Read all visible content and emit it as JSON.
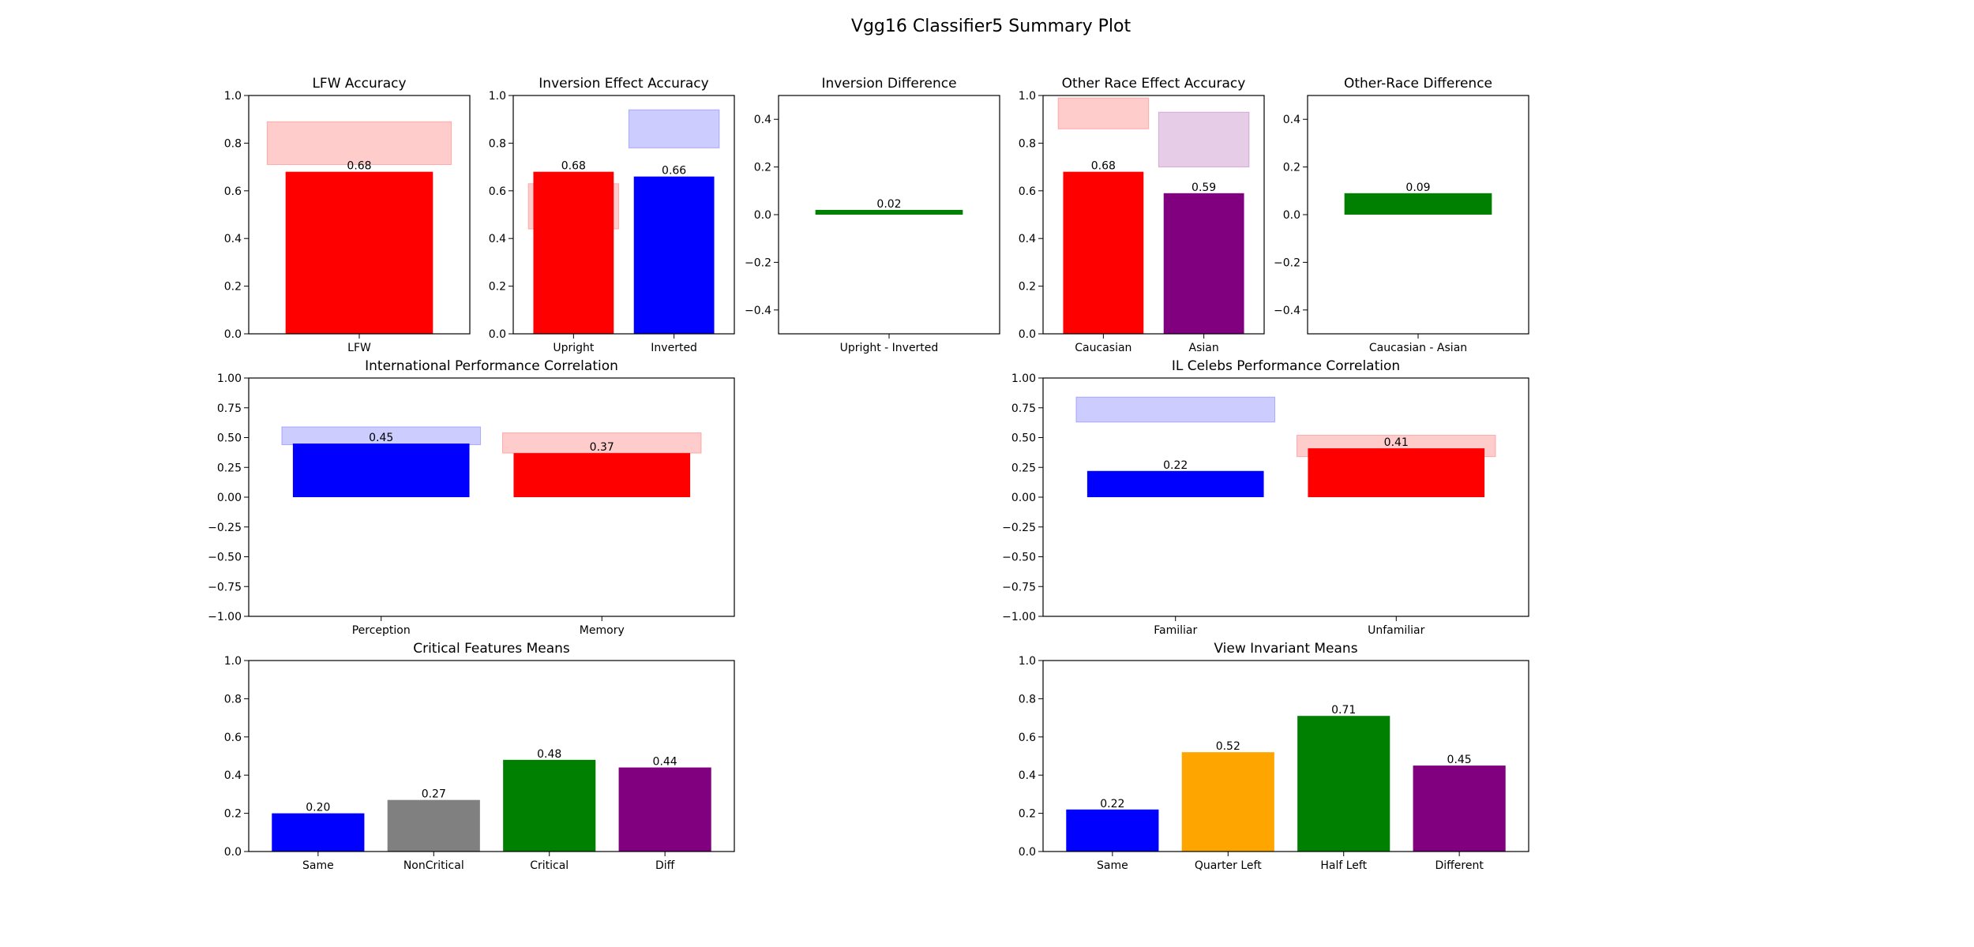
{
  "title": "Vgg16 Classifier5 Summary Plot",
  "chart_data": [
    {
      "id": "lfw",
      "type": "bar",
      "title": "LFW Accuracy",
      "categories": [
        "LFW"
      ],
      "values": [
        0.68
      ],
      "value_labels": [
        "0.68"
      ],
      "colors": [
        "#ff0000"
      ],
      "ylim": [
        0,
        1
      ],
      "yticks": [
        "0.0",
        "0.2",
        "0.4",
        "0.6",
        "0.8",
        "1.0"
      ],
      "bands": [
        {
          "x0": -0.5,
          "x1": 0.5,
          "y0": 0.71,
          "y1": 0.89,
          "color": "#ff0000"
        }
      ]
    },
    {
      "id": "inversion",
      "type": "bar",
      "title": "Inversion Effect Accuracy",
      "categories": [
        "Upright",
        "Inverted"
      ],
      "values": [
        0.68,
        0.66
      ],
      "value_labels": [
        "0.68",
        "0.66"
      ],
      "colors": [
        "#ff0000",
        "#0000ff"
      ],
      "ylim": [
        0,
        1
      ],
      "yticks": [
        "0.0",
        "0.2",
        "0.4",
        "0.6",
        "0.8",
        "1.0"
      ],
      "bands": [
        {
          "x0": -0.45,
          "x1": 0.45,
          "y0": 0.44,
          "y1": 0.63,
          "color": "#ff0000"
        },
        {
          "x0": 0.55,
          "x1": 1.45,
          "y0": 0.78,
          "y1": 0.94,
          "color": "#0000ff"
        }
      ]
    },
    {
      "id": "inversion-diff",
      "type": "bar",
      "title": "Inversion Difference",
      "categories": [
        "Upright - Inverted"
      ],
      "values": [
        0.02
      ],
      "value_labels": [
        "0.02"
      ],
      "colors": [
        "#008000"
      ],
      "ylim": [
        -0.5,
        0.5
      ],
      "yticks": [
        "−0.4",
        "−0.2",
        "0.0",
        "0.2",
        "0.4"
      ],
      "bands": []
    },
    {
      "id": "other-race",
      "type": "bar",
      "title": "Other Race Effect Accuracy",
      "categories": [
        "Caucasian",
        "Asian"
      ],
      "values": [
        0.68,
        0.59
      ],
      "value_labels": [
        "0.68",
        "0.59"
      ],
      "colors": [
        "#ff0000",
        "#800080"
      ],
      "ylim": [
        0,
        1
      ],
      "yticks": [
        "0.0",
        "0.2",
        "0.4",
        "0.6",
        "0.8",
        "1.0"
      ],
      "bands": [
        {
          "x0": -0.45,
          "x1": 0.45,
          "y0": 0.86,
          "y1": 0.99,
          "color": "#ff0000"
        },
        {
          "x0": 0.55,
          "x1": 1.45,
          "y0": 0.7,
          "y1": 0.93,
          "color": "#800080"
        }
      ]
    },
    {
      "id": "other-race-diff",
      "type": "bar",
      "title": "Other-Race Difference",
      "categories": [
        "Caucasian - Asian"
      ],
      "values": [
        0.09
      ],
      "value_labels": [
        "0.09"
      ],
      "colors": [
        "#008000"
      ],
      "ylim": [
        -0.5,
        0.5
      ],
      "yticks": [
        "−0.4",
        "−0.2",
        "0.0",
        "0.2",
        "0.4"
      ],
      "bands": []
    },
    {
      "id": "intl-corr",
      "type": "bar",
      "title": "International Performance Correlation",
      "categories": [
        "Perception",
        "Memory"
      ],
      "values": [
        0.45,
        0.37
      ],
      "value_labels": [
        "0.45",
        "0.37"
      ],
      "colors": [
        "#0000ff",
        "#ff0000"
      ],
      "ylim": [
        -1,
        1
      ],
      "yticks": [
        "−1.00",
        "−0.75",
        "−0.50",
        "−0.25",
        "0.00",
        "0.25",
        "0.50",
        "0.75",
        "1.00"
      ],
      "bands": [
        {
          "x0": -0.45,
          "x1": 0.45,
          "y0": 0.44,
          "y1": 0.59,
          "color": "#0000ff"
        },
        {
          "x0": 0.55,
          "x1": 1.45,
          "y0": 0.37,
          "y1": 0.54,
          "color": "#ff0000"
        }
      ]
    },
    {
      "id": "il-celebs",
      "type": "bar",
      "title": "IL Celebs Performance Correlation",
      "categories": [
        "Familiar",
        "Unfamiliar"
      ],
      "values": [
        0.22,
        0.41
      ],
      "value_labels": [
        "0.22",
        "0.41"
      ],
      "colors": [
        "#0000ff",
        "#ff0000"
      ],
      "ylim": [
        -1,
        1
      ],
      "yticks": [
        "−1.00",
        "−0.75",
        "−0.50",
        "−0.25",
        "0.00",
        "0.25",
        "0.50",
        "0.75",
        "1.00"
      ],
      "bands": [
        {
          "x0": -0.45,
          "x1": 0.45,
          "y0": 0.63,
          "y1": 0.84,
          "color": "#0000ff"
        },
        {
          "x0": 0.55,
          "x1": 1.45,
          "y0": 0.34,
          "y1": 0.52,
          "color": "#ff0000"
        }
      ]
    },
    {
      "id": "critical",
      "type": "bar",
      "title": "Critical Features Means",
      "categories": [
        "Same",
        "NonCritical",
        "Critical",
        "Diff"
      ],
      "values": [
        0.2,
        0.27,
        0.48,
        0.44
      ],
      "value_labels": [
        "0.20",
        "0.27",
        "0.48",
        "0.44"
      ],
      "colors": [
        "#0000ff",
        "#808080",
        "#008000",
        "#800080"
      ],
      "ylim": [
        0,
        1
      ],
      "yticks": [
        "0.0",
        "0.2",
        "0.4",
        "0.6",
        "0.8",
        "1.0"
      ],
      "bands": []
    },
    {
      "id": "view-invariant",
      "type": "bar",
      "title": "View Invariant Means",
      "categories": [
        "Same",
        "Quarter Left",
        "Half Left",
        "Different"
      ],
      "values": [
        0.22,
        0.52,
        0.71,
        0.45
      ],
      "value_labels": [
        "0.22",
        "0.52",
        "0.71",
        "0.45"
      ],
      "colors": [
        "#0000ff",
        "#ffa500",
        "#008000",
        "#800080"
      ],
      "ylim": [
        0,
        1
      ],
      "yticks": [
        "0.0",
        "0.2",
        "0.4",
        "0.6",
        "0.8",
        "1.0"
      ],
      "bands": []
    }
  ]
}
